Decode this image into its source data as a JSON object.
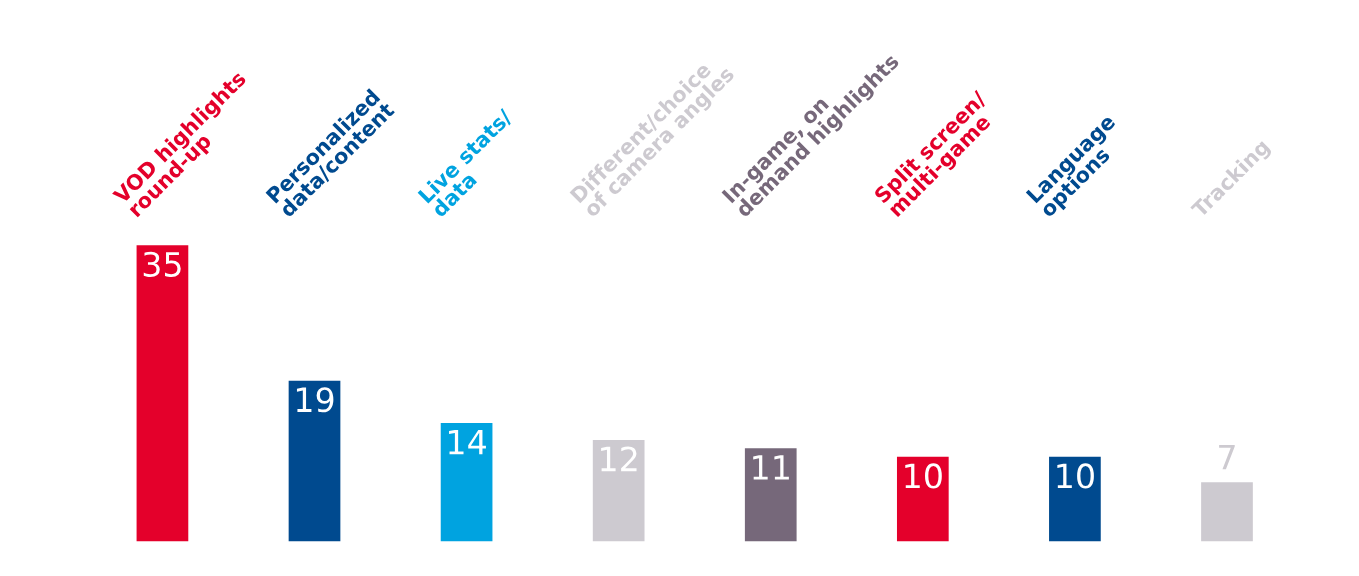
{
  "chart_data": {
    "type": "bar",
    "categories": [
      "VOD highlights\nround-up",
      "Personalized\ndata/content",
      "Live stats/\ndata",
      "Different/choice\nof camera angles",
      "In-game, on\ndemand highlights",
      "Split screen/\nmulti-game",
      "Language\noptions",
      "Tracking"
    ],
    "values": [
      35,
      19,
      14,
      12,
      11,
      10,
      10,
      7
    ],
    "colors": [
      "#e4002b",
      "#004a8f",
      "#00a3e0",
      "#cdcad0",
      "#76687a",
      "#e4002b",
      "#004a8f",
      "#cdcad0"
    ],
    "data_labels": true
  }
}
